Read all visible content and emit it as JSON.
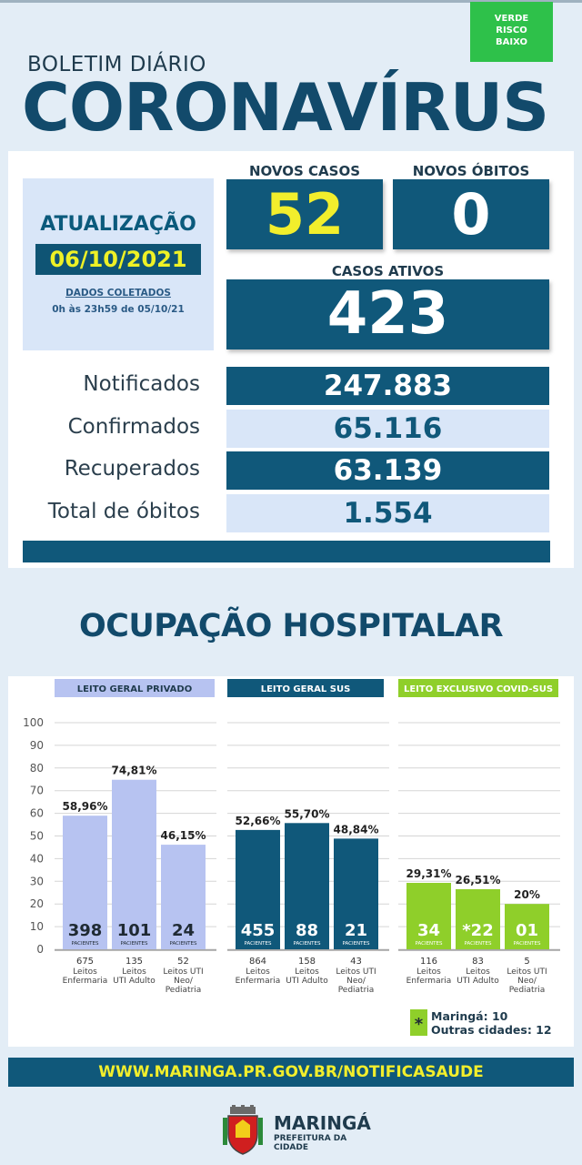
{
  "header": {
    "risk": [
      "VERDE",
      "RISCO",
      "BAIXO"
    ],
    "bulletin": "BOLETIM DIÁRIO",
    "title": "CORONAVÍRUS"
  },
  "update": {
    "title": "ATUALIZAÇÃO",
    "date": "06/10/2021",
    "collected": "DADOS COLETADOS",
    "range": "0h às 23h59 de 05/10/21"
  },
  "cards": {
    "new_cases_label": "NOVOS CASOS",
    "new_cases": "52",
    "new_deaths_label": "NOVOS ÓBITOS",
    "new_deaths": "0",
    "active_label": "CASOS ATIVOS",
    "active": "423"
  },
  "stats": [
    {
      "label": "Notificados",
      "value": "247.883"
    },
    {
      "label": "Confirmados",
      "value": "65.116"
    },
    {
      "label": "Recuperados",
      "value": "63.139"
    },
    {
      "label": "Total de óbitos",
      "value": "1.554"
    }
  ],
  "occupancy_title": "OCUPAÇÃO HOSPITALAR",
  "chart_data": {
    "type": "bar",
    "ylim": [
      0,
      100
    ],
    "yticks": [
      0,
      10,
      20,
      30,
      40,
      50,
      60,
      70,
      80,
      90,
      100
    ],
    "patients_label": "PACIENTES",
    "groups": [
      {
        "name": "LEITO GERAL PRIVADO",
        "color": "#b7c3f1",
        "header_color": "#b7c3f1",
        "header_text_color": "#1f3b4d",
        "bars": [
          {
            "value": 58.96,
            "label": "58,96%",
            "patients": "398",
            "beds": "675",
            "cat": [
              "Leitos",
              "Enfermaria"
            ]
          },
          {
            "value": 74.81,
            "label": "74,81%",
            "patients": "101",
            "beds": "135",
            "cat": [
              "Leitos",
              "UTI Adulto"
            ]
          },
          {
            "value": 46.15,
            "label": "46,15%",
            "patients": "24",
            "beds": "52",
            "cat": [
              "Leitos UTI",
              "Neo/",
              "Pediatria"
            ]
          }
        ]
      },
      {
        "name": "LEITO GERAL SUS",
        "color": "#10587a",
        "header_color": "#10587a",
        "header_text_color": "#ffffff",
        "bars": [
          {
            "value": 52.66,
            "label": "52,66%",
            "patients": "455",
            "beds": "864",
            "cat": [
              "Leitos",
              "Enfermaria"
            ]
          },
          {
            "value": 55.7,
            "label": "55,70%",
            "patients": "88",
            "beds": "158",
            "cat": [
              "Leitos",
              "UTI Adulto"
            ]
          },
          {
            "value": 48.84,
            "label": "48,84%",
            "patients": "21",
            "beds": "43",
            "cat": [
              "Leitos UTI",
              "Neo/",
              "Pediatria"
            ]
          }
        ]
      },
      {
        "name": "LEITO EXCLUSIVO COVID-SUS",
        "color": "#8fcf2a",
        "header_color": "#8fcf2a",
        "header_text_color": "#ffffff",
        "bars": [
          {
            "value": 29.31,
            "label": "29,31%",
            "patients": "34",
            "beds": "116",
            "cat": [
              "Leitos",
              "Enfermaria"
            ]
          },
          {
            "value": 26.51,
            "label": "26,51%",
            "patients": "*22",
            "beds": "83",
            "cat": [
              "Leitos",
              "UTI Adulto"
            ]
          },
          {
            "value": 20,
            "label": "20%",
            "patients": "01",
            "beds": "5",
            "cat": [
              "Leitos UTI",
              "Neo/",
              "Pediatria"
            ]
          }
        ]
      }
    ]
  },
  "note": {
    "marker": "*",
    "line1": "Maringá: 10",
    "line2": "Outras cidades: 12"
  },
  "footer": {
    "url": "WWW.MARINGA.PR.GOV.BR/NOTIFICASAUDE",
    "city": "MARINGÁ",
    "prefecture": "PREFEITURA DA CIDADE"
  }
}
